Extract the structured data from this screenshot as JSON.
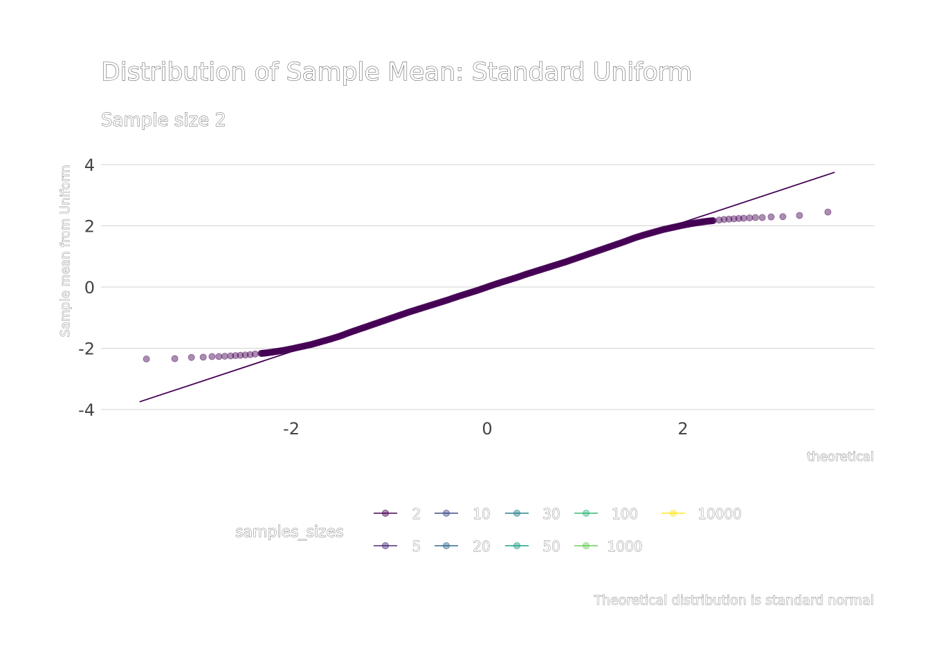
{
  "chart_data": {
    "type": "scatter",
    "title": "Distribution of Sample Mean: Standard Uniform",
    "subtitle": "Sample size 2",
    "xlabel": "theoretical",
    "ylabel": "Sample mean from Uniform",
    "caption": "Theoretical distribution is standard normal",
    "xlim": [
      -3.7,
      3.95
    ],
    "ylim": [
      -4.2,
      4.3
    ],
    "xticks": [
      -2,
      0,
      2
    ],
    "xtick_labels": [
      "-2",
      "0",
      "2"
    ],
    "yticks": [
      -4,
      -2,
      0,
      2,
      4
    ],
    "ytick_labels": [
      "-4",
      "-2",
      "0",
      "2",
      "4"
    ],
    "grid": "horizontal",
    "legend": {
      "title": "samples_sizes",
      "placement": "bottom",
      "items": [
        {
          "label": "2",
          "color": "#440154"
        },
        {
          "label": "5",
          "color": "#482878"
        },
        {
          "label": "10",
          "color": "#3E4A89"
        },
        {
          "label": "20",
          "color": "#31688E"
        },
        {
          "label": "30",
          "color": "#26828E"
        },
        {
          "label": "50",
          "color": "#1F9E89"
        },
        {
          "label": "100",
          "color": "#35B779"
        },
        {
          "label": "1000",
          "color": "#6DCD59"
        },
        {
          "label": "10000",
          "color": "#FDE725"
        }
      ]
    },
    "reference_line": {
      "x": [
        -3.55,
        3.55
      ],
      "y": [
        -3.75,
        3.75
      ],
      "color": "#440154"
    },
    "series": [
      {
        "name": "2",
        "color": "#440154",
        "points": [
          [
            -3.48,
            -2.35
          ],
          [
            -3.19,
            -2.34
          ],
          [
            -3.02,
            -2.3
          ],
          [
            -2.9,
            -2.29
          ],
          [
            -2.81,
            -2.27
          ],
          [
            -2.74,
            -2.27
          ],
          [
            -2.68,
            -2.26
          ],
          [
            -2.62,
            -2.25
          ],
          [
            -2.57,
            -2.24
          ],
          [
            -2.52,
            -2.23
          ],
          [
            -2.47,
            -2.22
          ],
          [
            -2.42,
            -2.21
          ],
          [
            -2.37,
            -2.19
          ],
          [
            -2.31,
            -2.17
          ],
          [
            -2.25,
            -2.15
          ],
          [
            -2.18,
            -2.12
          ],
          [
            -2.1,
            -2.08
          ],
          [
            -2.0,
            -2.02
          ],
          [
            -1.9,
            -1.95
          ],
          [
            -1.8,
            -1.88
          ],
          [
            -1.7,
            -1.79
          ],
          [
            -1.6,
            -1.7
          ],
          [
            -1.5,
            -1.6
          ],
          [
            -1.4,
            -1.48
          ],
          [
            -1.3,
            -1.37
          ],
          [
            -1.2,
            -1.26
          ],
          [
            -1.1,
            -1.15
          ],
          [
            -1.0,
            -1.04
          ],
          [
            -0.9,
            -0.93
          ],
          [
            -0.8,
            -0.82
          ],
          [
            -0.7,
            -0.72
          ],
          [
            -0.6,
            -0.62
          ],
          [
            -0.5,
            -0.52
          ],
          [
            -0.4,
            -0.42
          ],
          [
            -0.3,
            -0.31
          ],
          [
            -0.2,
            -0.21
          ],
          [
            -0.1,
            -0.11
          ],
          [
            0.0,
            0.0
          ],
          [
            0.1,
            0.11
          ],
          [
            0.2,
            0.21
          ],
          [
            0.3,
            0.31
          ],
          [
            0.4,
            0.42
          ],
          [
            0.5,
            0.52
          ],
          [
            0.6,
            0.62
          ],
          [
            0.7,
            0.72
          ],
          [
            0.8,
            0.82
          ],
          [
            0.9,
            0.93
          ],
          [
            1.0,
            1.04
          ],
          [
            1.1,
            1.15
          ],
          [
            1.2,
            1.26
          ],
          [
            1.3,
            1.37
          ],
          [
            1.4,
            1.48
          ],
          [
            1.5,
            1.6
          ],
          [
            1.6,
            1.7
          ],
          [
            1.7,
            1.79
          ],
          [
            1.8,
            1.88
          ],
          [
            1.9,
            1.95
          ],
          [
            2.0,
            2.02
          ],
          [
            2.1,
            2.08
          ],
          [
            2.18,
            2.12
          ],
          [
            2.25,
            2.15
          ],
          [
            2.31,
            2.17
          ],
          [
            2.37,
            2.19
          ],
          [
            2.42,
            2.21
          ],
          [
            2.47,
            2.22
          ],
          [
            2.52,
            2.23
          ],
          [
            2.57,
            2.24
          ],
          [
            2.62,
            2.25
          ],
          [
            2.68,
            2.26
          ],
          [
            2.74,
            2.27
          ],
          [
            2.81,
            2.27
          ],
          [
            2.9,
            2.29
          ],
          [
            3.02,
            2.3
          ],
          [
            3.19,
            2.34
          ],
          [
            3.48,
            2.45
          ]
        ]
      }
    ]
  }
}
